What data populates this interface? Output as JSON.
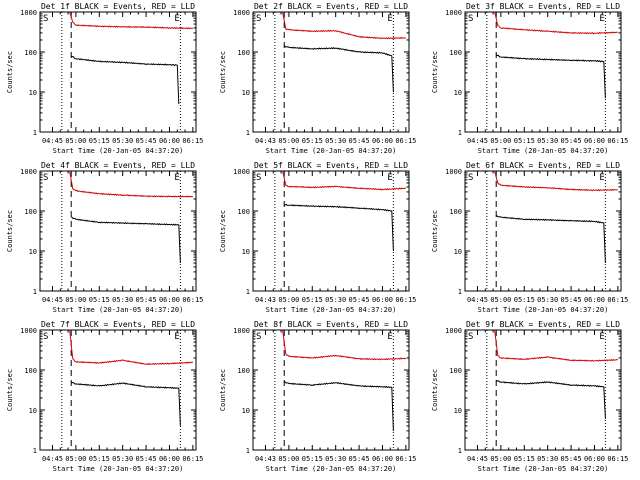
{
  "colors": {
    "events": "#000000",
    "lld": "#d40000",
    "axis": "#000000"
  },
  "common": {
    "xlabel": "Start Time (20-Jan-05 04:37:20)",
    "ylabel": "Counts/sec",
    "xticks": [
      "04:45",
      "05:00",
      "05:15",
      "05:30",
      "05:45",
      "06:00",
      "06:15"
    ],
    "xticks_alt": [
      "04:43",
      "05:00",
      "05:15",
      "05:30",
      "05:45",
      "06:00",
      "06:15"
    ],
    "yticks": [
      "1",
      "10",
      "100",
      "1000"
    ],
    "marker_s": "S",
    "marker_e": "E"
  },
  "chart_data": [
    {
      "type": "line",
      "title": "Det 1f BLACK = Events, RED = LLD",
      "xlabel": "Start Time (20-Jan-05 04:37:20)",
      "ylabel": "Counts/sec",
      "yscale": "log",
      "ylim": [
        1,
        1000
      ],
      "xlim": [
        "04:37",
        "06:17"
      ],
      "tick_set": "std",
      "series": [
        {
          "name": "Events",
          "values": [
            [
              "04:57",
              80
            ],
            [
              "05:00",
              68
            ],
            [
              "05:15",
              58
            ],
            [
              "05:30",
              55
            ],
            [
              "05:45",
              50
            ],
            [
              "06:00",
              48
            ],
            [
              "06:05",
              47
            ],
            [
              "06:06",
              5
            ]
          ]
        },
        {
          "name": "LLD",
          "values": [
            [
              "04:56",
              1000
            ],
            [
              "04:58",
              560
            ],
            [
              "05:00",
              470
            ],
            [
              "05:15",
              440
            ],
            [
              "05:30",
              425
            ],
            [
              "05:45",
              420
            ],
            [
              "06:00",
              400
            ],
            [
              "06:15",
              390
            ]
          ]
        }
      ]
    },
    {
      "type": "line",
      "title": "Det 2f BLACK = Events, RED = LLD",
      "xlabel": "Start Time (20-Jan-05 04:37:20)",
      "ylabel": "Counts/sec",
      "yscale": "log",
      "ylim": [
        1,
        1000
      ],
      "xlim": [
        "04:37",
        "06:17"
      ],
      "tick_set": "alt",
      "series": [
        {
          "name": "Events",
          "values": [
            [
              "04:57",
              140
            ],
            [
              "05:00",
              130
            ],
            [
              "05:15",
              120
            ],
            [
              "05:30",
              125
            ],
            [
              "05:45",
              100
            ],
            [
              "06:00",
              95
            ],
            [
              "06:06",
              80
            ],
            [
              "06:07",
              10
            ]
          ]
        },
        {
          "name": "LLD",
          "values": [
            [
              "04:56",
              1000
            ],
            [
              "04:58",
              380
            ],
            [
              "05:00",
              360
            ],
            [
              "05:15",
              330
            ],
            [
              "05:30",
              340
            ],
            [
              "05:45",
              240
            ],
            [
              "06:00",
              220
            ],
            [
              "06:15",
              225
            ]
          ]
        }
      ]
    },
    {
      "type": "line",
      "title": "Det 3f BLACK = Events, RED = LLD",
      "xlabel": "Start Time (20-Jan-05 04:37:20)",
      "ylabel": "Counts/sec",
      "yscale": "log",
      "ylim": [
        1,
        1000
      ],
      "xlim": [
        "04:37",
        "06:17"
      ],
      "tick_set": "std",
      "series": [
        {
          "name": "Events",
          "values": [
            [
              "04:57",
              85
            ],
            [
              "05:00",
              75
            ],
            [
              "05:15",
              68
            ],
            [
              "05:30",
              65
            ],
            [
              "05:45",
              62
            ],
            [
              "06:00",
              60
            ],
            [
              "06:06",
              58
            ],
            [
              "06:07",
              7
            ]
          ]
        },
        {
          "name": "LLD",
          "values": [
            [
              "04:56",
              1000
            ],
            [
              "04:58",
              460
            ],
            [
              "05:00",
              400
            ],
            [
              "05:15",
              360
            ],
            [
              "05:30",
              330
            ],
            [
              "05:45",
              300
            ],
            [
              "06:00",
              295
            ],
            [
              "06:15",
              310
            ]
          ]
        }
      ]
    },
    {
      "type": "line",
      "title": "Det 4f BLACK = Events, RED = LLD",
      "xlabel": "Start Time (20-Jan-05 04:37:20)",
      "ylabel": "Counts/sec",
      "yscale": "log",
      "ylim": [
        1,
        1000
      ],
      "xlim": [
        "04:37",
        "06:17"
      ],
      "tick_set": "std",
      "series": [
        {
          "name": "Events",
          "values": [
            [
              "04:57",
              70
            ],
            [
              "05:00",
              62
            ],
            [
              "05:15",
              52
            ],
            [
              "05:30",
              50
            ],
            [
              "05:45",
              48
            ],
            [
              "06:00",
              46
            ],
            [
              "06:06",
              45
            ],
            [
              "06:07",
              5
            ]
          ]
        },
        {
          "name": "LLD",
          "values": [
            [
              "04:56",
              1000
            ],
            [
              "04:58",
              360
            ],
            [
              "05:00",
              320
            ],
            [
              "05:15",
              270
            ],
            [
              "05:30",
              250
            ],
            [
              "05:45",
              235
            ],
            [
              "06:00",
              230
            ],
            [
              "06:15",
              230
            ]
          ]
        }
      ]
    },
    {
      "type": "line",
      "title": "Det 5f BLACK = Events, RED = LLD",
      "xlabel": "Start Time (20-Jan-05 04:37:20)",
      "ylabel": "Counts/sec",
      "yscale": "log",
      "ylim": [
        1,
        1000
      ],
      "xlim": [
        "04:37",
        "06:17"
      ],
      "tick_set": "alt",
      "series": [
        {
          "name": "Events",
          "values": [
            [
              "04:57",
              145
            ],
            [
              "05:00",
              140
            ],
            [
              "05:15",
              132
            ],
            [
              "05:30",
              128
            ],
            [
              "05:45",
              118
            ],
            [
              "06:00",
              108
            ],
            [
              "06:06",
              100
            ],
            [
              "06:07",
              10
            ]
          ]
        },
        {
          "name": "LLD",
          "values": [
            [
              "04:56",
              1000
            ],
            [
              "04:58",
              440
            ],
            [
              "05:00",
              410
            ],
            [
              "05:15",
              390
            ],
            [
              "05:30",
              410
            ],
            [
              "05:45",
              370
            ],
            [
              "06:00",
              345
            ],
            [
              "06:15",
              370
            ]
          ]
        }
      ]
    },
    {
      "type": "line",
      "title": "Det 6f BLACK = Events, RED = LLD",
      "xlabel": "Start Time (20-Jan-05 04:37:20)",
      "ylabel": "Counts/sec",
      "yscale": "log",
      "ylim": [
        1,
        1000
      ],
      "xlim": [
        "04:37",
        "06:17"
      ],
      "tick_set": "std",
      "series": [
        {
          "name": "Events",
          "values": [
            [
              "04:57",
              75
            ],
            [
              "05:00",
              70
            ],
            [
              "05:15",
              62
            ],
            [
              "05:30",
              60
            ],
            [
              "05:45",
              57
            ],
            [
              "06:00",
              55
            ],
            [
              "06:06",
              50
            ],
            [
              "06:07",
              5
            ]
          ]
        },
        {
          "name": "LLD",
          "values": [
            [
              "04:56",
              1000
            ],
            [
              "04:58",
              500
            ],
            [
              "05:00",
              440
            ],
            [
              "05:15",
              400
            ],
            [
              "05:30",
              380
            ],
            [
              "05:45",
              345
            ],
            [
              "06:00",
              330
            ],
            [
              "06:15",
              340
            ]
          ]
        }
      ]
    },
    {
      "type": "line",
      "title": "Det 7f BLACK = Events, RED = LLD",
      "xlabel": "Start Time (20-Jan-05 04:37:20)",
      "ylabel": "Counts/sec",
      "yscale": "log",
      "ylim": [
        1,
        1000
      ],
      "xlim": [
        "04:37",
        "06:17"
      ],
      "tick_set": "std",
      "series": [
        {
          "name": "Events",
          "values": [
            [
              "04:57",
              50
            ],
            [
              "05:00",
              45
            ],
            [
              "05:15",
              40
            ],
            [
              "05:30",
              47
            ],
            [
              "05:45",
              38
            ],
            [
              "06:00",
              36
            ],
            [
              "06:06",
              35
            ],
            [
              "06:07",
              4
            ]
          ]
        },
        {
          "name": "LLD",
          "values": [
            [
              "04:56",
              1000
            ],
            [
              "04:58",
              190
            ],
            [
              "05:00",
              160
            ],
            [
              "05:15",
              150
            ],
            [
              "05:30",
              175
            ],
            [
              "05:45",
              140
            ],
            [
              "06:00",
              145
            ],
            [
              "06:15",
              155
            ]
          ]
        }
      ]
    },
    {
      "type": "line",
      "title": "Det 8f BLACK = Events, RED = LLD",
      "xlabel": "Start Time (20-Jan-05 04:37:20)",
      "ylabel": "Counts/sec",
      "yscale": "log",
      "ylim": [
        1,
        1000
      ],
      "xlim": [
        "04:37",
        "06:17"
      ],
      "tick_set": "alt",
      "series": [
        {
          "name": "Events",
          "values": [
            [
              "04:57",
              50
            ],
            [
              "05:00",
              46
            ],
            [
              "05:15",
              42
            ],
            [
              "05:30",
              48
            ],
            [
              "05:45",
              40
            ],
            [
              "06:00",
              38
            ],
            [
              "06:06",
              37
            ],
            [
              "06:07",
              3
            ]
          ]
        },
        {
          "name": "LLD",
          "values": [
            [
              "04:56",
              1000
            ],
            [
              "04:58",
              250
            ],
            [
              "05:00",
              220
            ],
            [
              "05:15",
              200
            ],
            [
              "05:30",
              230
            ],
            [
              "05:45",
              190
            ],
            [
              "06:00",
              185
            ],
            [
              "06:15",
              195
            ]
          ]
        }
      ]
    },
    {
      "type": "line",
      "title": "Det 9f BLACK = Events, RED = LLD",
      "xlabel": "Start Time (20-Jan-05 04:37:20)",
      "ylabel": "Counts/sec",
      "yscale": "log",
      "ylim": [
        1,
        1000
      ],
      "xlim": [
        "04:37",
        "06:17"
      ],
      "tick_set": "std",
      "series": [
        {
          "name": "Events",
          "values": [
            [
              "04:57",
              55
            ],
            [
              "05:00",
              50
            ],
            [
              "05:15",
              45
            ],
            [
              "05:30",
              50
            ],
            [
              "05:45",
              42
            ],
            [
              "06:00",
              40
            ],
            [
              "06:06",
              38
            ],
            [
              "06:07",
              6
            ]
          ]
        },
        {
          "name": "LLD",
          "values": [
            [
              "04:56",
              1000
            ],
            [
              "04:58",
              230
            ],
            [
              "05:00",
              200
            ],
            [
              "05:15",
              185
            ],
            [
              "05:30",
              210
            ],
            [
              "05:45",
              175
            ],
            [
              "06:00",
              170
            ],
            [
              "06:15",
              180
            ]
          ]
        }
      ]
    }
  ]
}
